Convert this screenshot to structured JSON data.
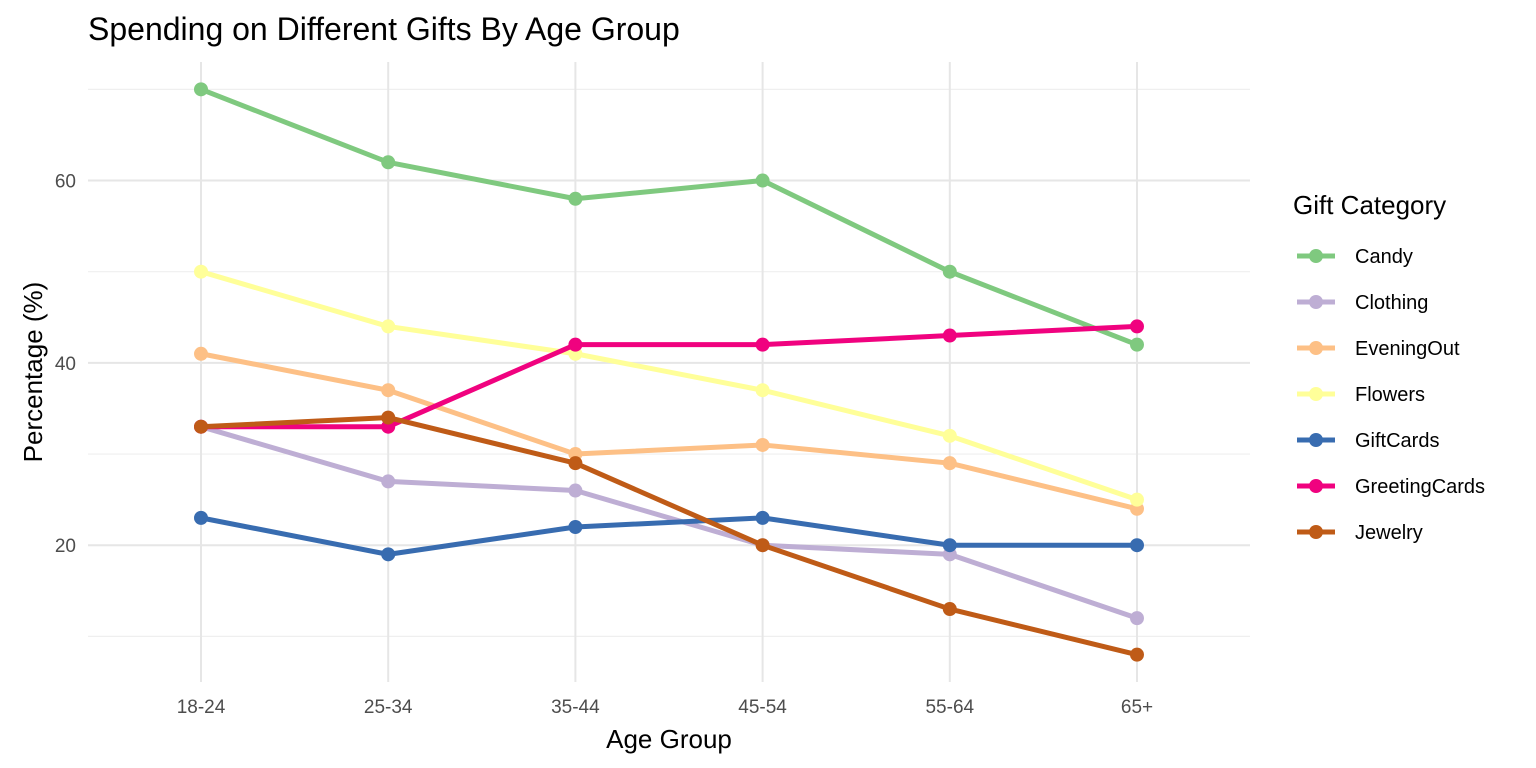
{
  "chart_data": {
    "type": "line",
    "title": "Spending on Different Gifts By Age Group",
    "xlabel": "Age Group",
    "ylabel": "Percentage (%)",
    "categories": [
      "18-24",
      "25-34",
      "35-44",
      "45-54",
      "55-64",
      "65+"
    ],
    "ylim": [
      5,
      73
    ],
    "yticks": [
      20,
      40,
      60
    ],
    "grid": true,
    "legend": {
      "title": "Gift Category",
      "placement": "right"
    },
    "series": [
      {
        "name": "Candy",
        "color": "#7fc97f",
        "values": [
          70,
          62,
          58,
          60,
          50,
          42
        ]
      },
      {
        "name": "Clothing",
        "color": "#beaed4",
        "values": [
          33,
          27,
          26,
          20,
          19,
          12
        ]
      },
      {
        "name": "EveningOut",
        "color": "#fdc086",
        "values": [
          41,
          37,
          30,
          31,
          29,
          24
        ]
      },
      {
        "name": "Flowers",
        "color": "#ffff99",
        "values": [
          50,
          44,
          41,
          37,
          32,
          25
        ]
      },
      {
        "name": "GiftCards",
        "color": "#386cb0",
        "values": [
          23,
          19,
          22,
          23,
          20,
          20
        ]
      },
      {
        "name": "GreetingCards",
        "color": "#f0027f",
        "values": [
          33,
          33,
          42,
          42,
          43,
          44
        ]
      },
      {
        "name": "Jewelry",
        "color": "#bf5b17",
        "values": [
          33,
          34,
          29,
          20,
          13,
          8
        ]
      }
    ]
  }
}
